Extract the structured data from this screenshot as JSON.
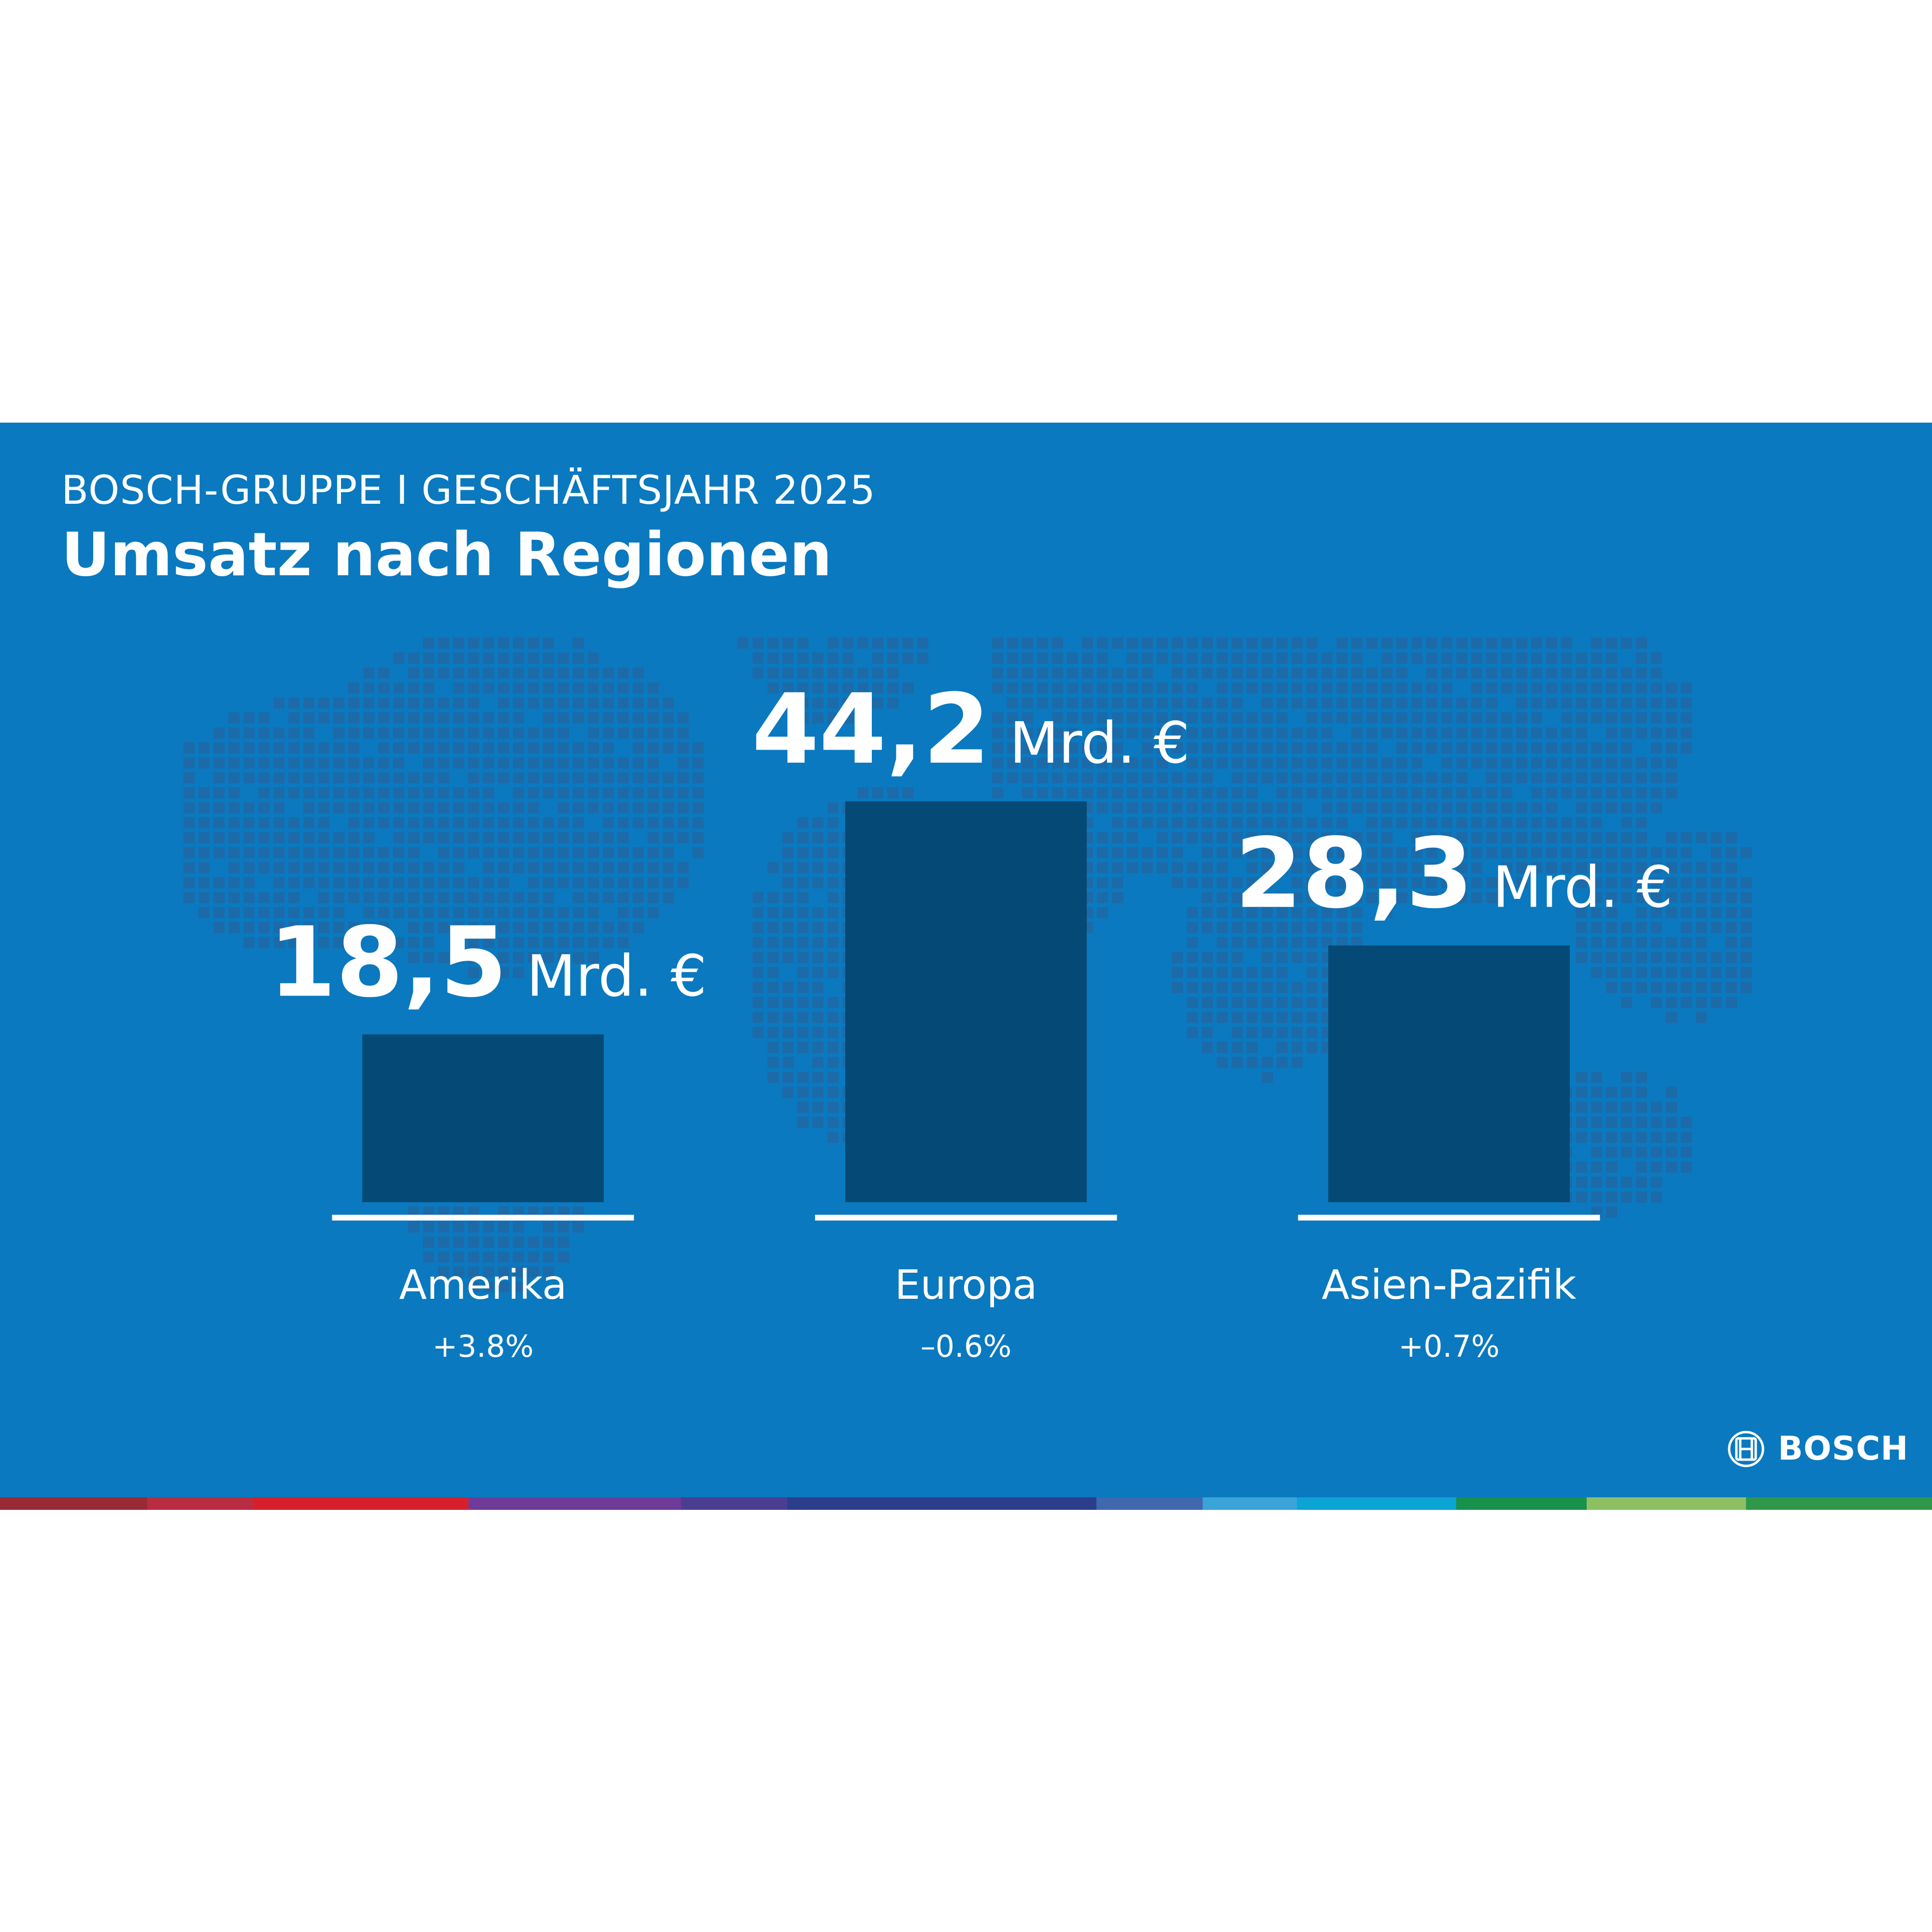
{
  "header": {
    "kicker": "BOSCH-GRUPPE I GESCHÄFTSJAHR 2025",
    "title": "Umsatz nach Regionen"
  },
  "colors": {
    "background": "#0a79bf",
    "map_dot": "#1d6aa8",
    "bar": "#054a76",
    "text": "#ffffff",
    "stripe": [
      "#9a2a38",
      "#b92d42",
      "#d7202d",
      "#6e3b98",
      "#4a3e93",
      "#2b3e8c",
      "#3f68ae",
      "#3aa4d6",
      "#0ca3d5",
      "#17914c",
      "#8cc063",
      "#2f9749"
    ]
  },
  "chart_data": {
    "type": "bar",
    "title": "Umsatz nach Regionen",
    "unit": "Mrd. €",
    "categories": [
      "Amerika",
      "Europa",
      "Asien-Pazifik"
    ],
    "values": [
      18.5,
      44.2,
      28.3
    ],
    "value_labels": [
      "18,5",
      "44,2",
      "28,3"
    ],
    "changes": [
      "+3.8%",
      "–0.6%",
      "+0.7%"
    ],
    "grid": false,
    "legend": "none"
  },
  "footer": {
    "logo_icon": "bosch-armature-icon",
    "logo_text": "BOSCH"
  }
}
